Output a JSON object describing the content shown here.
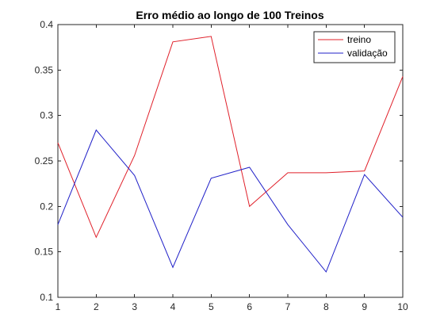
{
  "chart_data": {
    "type": "line",
    "title": "Erro médio ao longo de 100 Treinos",
    "xlabel": "",
    "ylabel": "",
    "x": [
      1,
      2,
      3,
      4,
      5,
      6,
      7,
      8,
      9,
      10
    ],
    "xlim": [
      1,
      10
    ],
    "ylim": [
      0.1,
      0.4
    ],
    "xticks": [
      1,
      2,
      3,
      4,
      5,
      6,
      7,
      8,
      9,
      10
    ],
    "yticks": [
      0.1,
      0.15,
      0.2,
      0.25,
      0.3,
      0.35,
      0.4
    ],
    "ytick_labels": [
      "0.1",
      "0.15",
      "0.2",
      "0.25",
      "0.3",
      "0.35",
      "0.4"
    ],
    "grid": false,
    "legend_position": "top-right",
    "series": [
      {
        "name": "treino",
        "color": "#e0202a",
        "values": [
          0.27,
          0.166,
          0.256,
          0.381,
          0.387,
          0.2,
          0.237,
          0.237,
          0.239,
          0.343
        ]
      },
      {
        "name": "validação",
        "color": "#2020c8",
        "values": [
          0.18,
          0.284,
          0.234,
          0.133,
          0.231,
          0.243,
          0.18,
          0.128,
          0.235,
          0.188
        ]
      }
    ]
  }
}
